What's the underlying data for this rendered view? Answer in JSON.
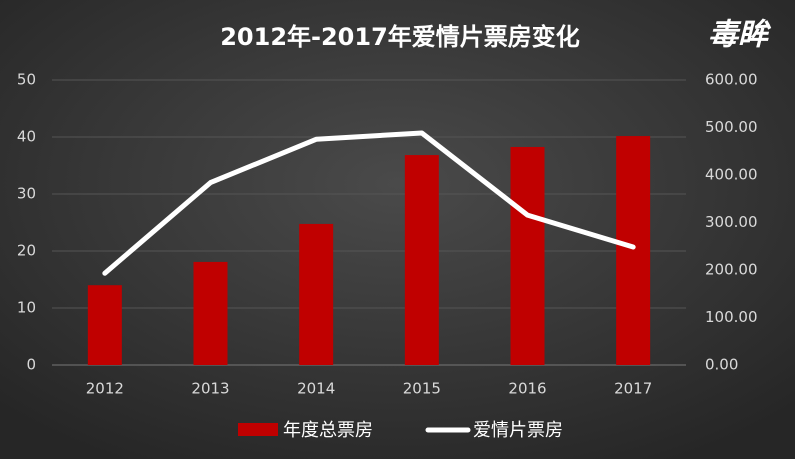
{
  "chart_data": {
    "type": "bar-line",
    "title": "2012年-2017年爱情片票房变化",
    "logo": "毒眸",
    "categories": [
      "2012",
      "2013",
      "2014",
      "2015",
      "2016",
      "2017"
    ],
    "series": [
      {
        "name": "年度总票房",
        "color": "#c00000",
        "type": "bar",
        "axis": "y2",
        "values": [
          168,
          217,
          297,
          442,
          459,
          482
        ]
      },
      {
        "name": "爱情片票房",
        "color": "#ffffff",
        "type": "line",
        "values": [
          16.1,
          32,
          39.6,
          40.7,
          26.3,
          20.7
        ]
      }
    ],
    "ylim": [
      0,
      50
    ],
    "yticks": [
      0,
      10,
      20,
      30,
      40,
      50
    ],
    "y2lim": [
      0,
      600
    ],
    "y2ticks": [
      {
        "value": 0,
        "label": "0.00"
      },
      {
        "value": 100,
        "label": "100.00"
      },
      {
        "value": 200,
        "label": "200.00"
      },
      {
        "value": 300,
        "label": "300.00"
      },
      {
        "value": 400,
        "label": "400.00"
      },
      {
        "value": 500,
        "label": "500.00"
      },
      {
        "value": 600,
        "label": "600.00"
      }
    ],
    "grid": true,
    "legend": "bottom"
  }
}
